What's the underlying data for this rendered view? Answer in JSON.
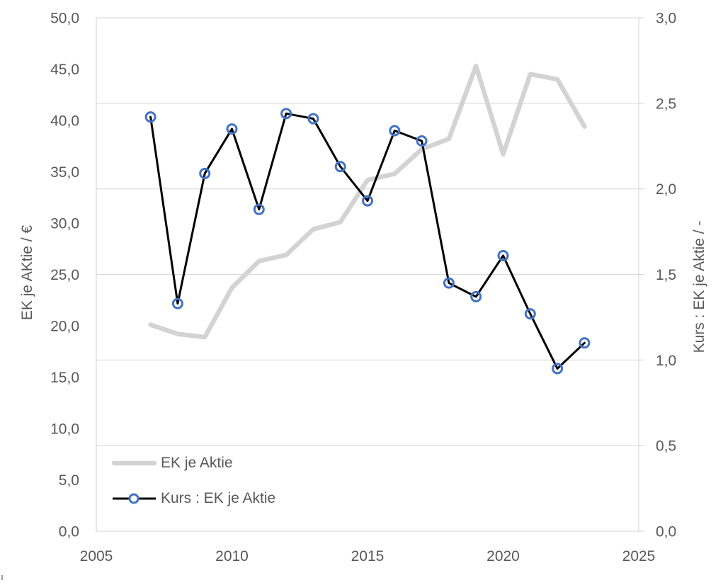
{
  "colors": {
    "text": "#595959",
    "gridline": "#d9d9d9",
    "plot_border": "#d9d9d9",
    "series_ek_gray": "#d3d3d3",
    "series_kurs_black": "#000000",
    "marker_stroke": "#4472c4",
    "background": "#ffffff"
  },
  "chart_data": {
    "type": "line",
    "title": "",
    "x": [
      2007,
      2008,
      2009,
      2010,
      2011,
      2012,
      2013,
      2014,
      2015,
      2016,
      2017,
      2018,
      2019,
      2020,
      2021,
      2022,
      2023
    ],
    "series": [
      {
        "name": "EK je Aktie",
        "axis": "left",
        "color": "#d3d3d3",
        "line_width": 6.5,
        "marker": "none",
        "values": [
          20.1,
          19.2,
          18.9,
          23.7,
          26.3,
          26.9,
          29.4,
          30.1,
          34.2,
          34.8,
          37.2,
          38.2,
          45.3,
          36.7,
          44.5,
          44.0,
          39.4
        ]
      },
      {
        "name": "Kurs : EK je Aktie",
        "axis": "right",
        "color": "#000000",
        "line_width": 3,
        "marker": "circle",
        "marker_color": "#4472c4",
        "values": [
          2.42,
          1.33,
          2.09,
          2.35,
          1.88,
          2.44,
          2.41,
          2.13,
          1.93,
          2.34,
          2.28,
          1.45,
          1.37,
          1.61,
          1.27,
          0.95,
          1.1
        ]
      }
    ],
    "x_axis": {
      "min": 2005,
      "max": 2025,
      "tick_values": [
        2005,
        2010,
        2015,
        2020,
        2025
      ],
      "tick_labels": [
        "2005",
        "2010",
        "2015",
        "2020",
        "2025"
      ]
    },
    "left_axis": {
      "label": "EK je AKtie / €",
      "min": 0,
      "max": 50,
      "tick_step": 5,
      "tick_labels": [
        "50,0",
        "45,0",
        "40,0",
        "35,0",
        "30,0",
        "25,0",
        "20,0",
        "15,0",
        "10,0",
        "5,0",
        "0,0"
      ]
    },
    "right_axis": {
      "label": "Kurs : EK je Aktie / -",
      "min": 0,
      "max": 3,
      "tick_step": 0.5,
      "tick_labels": [
        "3,0",
        "2,5",
        "2,0",
        "1,5",
        "1,0",
        "0,5",
        "0,0"
      ]
    },
    "grid": {
      "horizontal": true,
      "vertical": false,
      "aligned_to": "right_axis"
    },
    "legend": {
      "position": "inside-bottom-left",
      "entries": [
        {
          "label": "EK je Aktie",
          "swatch": "thick-gray-line"
        },
        {
          "label": "Kurs : EK je Aktie",
          "swatch": "black-line-with-circle-marker"
        }
      ]
    }
  }
}
